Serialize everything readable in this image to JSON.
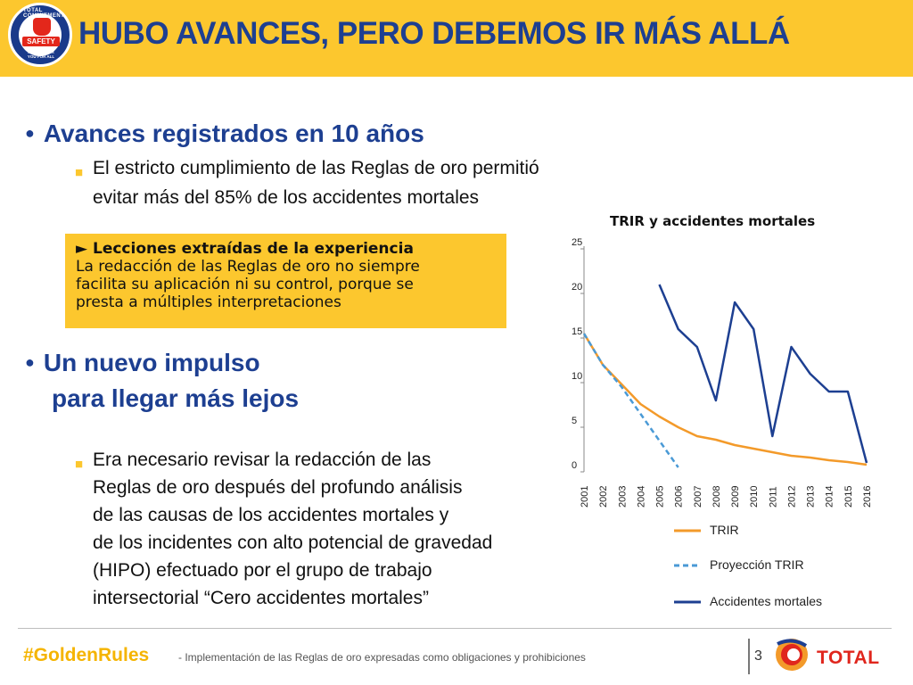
{
  "header": {
    "title": "HUBO AVANCES, PERO DEBEMOS IR MÁS ALLÁ",
    "logo": {
      "ring_text": "TOTAL COMMITMENT",
      "center_text": "SAFETY",
      "bottom_text": "FOR ME, FOR YOU FOR ALL"
    }
  },
  "section1": {
    "bullet": "Avances registrados en 10 años",
    "item_line1": "El estricto cumplimiento de las Reglas de oro permitió",
    "item_line2": "evitar más del 85% de los accidentes mortales"
  },
  "lessons": {
    "title": "► Lecciones extraídas de la experiencia",
    "line1": "La redacción de las Reglas de oro no siempre",
    "line2": "facilita su aplicación ni su control, porque se",
    "line3": "presta a múltiples interpretaciones"
  },
  "section2": {
    "bullet_line1": "Un nuevo impulso",
    "bullet_line2": "para llegar más lejos",
    "lines": [
      "Era necesario revisar la redacción de las",
      "Reglas de oro después del profundo análisis",
      "de las causas de los accidentes mortales y",
      "de los incidentes con alto potencial de gravedad",
      "(HIPO) efectuado por el grupo de trabajo",
      "intersectorial “Cero accidentes mortales”"
    ]
  },
  "footer": {
    "hashtag": "#GoldenRules",
    "subtitle": "- Implementación de las Reglas de oro expresadas como obligaciones y prohibiciones",
    "page_number": "3",
    "brand": "TOTAL"
  },
  "chart_data": {
    "type": "line",
    "title": "TRIR y accidentes mortales",
    "ylim": [
      0,
      25
    ],
    "yticks": [
      0,
      5,
      10,
      15,
      20,
      25
    ],
    "x": [
      "2001",
      "2002",
      "2003",
      "2004",
      "2005",
      "2006",
      "2007",
      "2008",
      "2009",
      "2010",
      "2011",
      "2012",
      "2013",
      "2014",
      "2015",
      "2016"
    ],
    "legend_position": "bottom",
    "series": [
      {
        "name": "TRIR",
        "color": "#f39a2a",
        "dashed": false,
        "values": [
          15.5,
          12,
          9.8,
          7.6,
          6.2,
          5.0,
          4.0,
          3.6,
          3.0,
          2.6,
          2.2,
          1.8,
          1.6,
          1.3,
          1.1,
          0.8
        ]
      },
      {
        "name": "Proyección TRIR",
        "color": "#4a9ad6",
        "dashed": true,
        "values": [
          15.5,
          12,
          9.5,
          6.5,
          3.5,
          0.5,
          null,
          null,
          null,
          null,
          null,
          null,
          null,
          null,
          null,
          null
        ]
      },
      {
        "name": "Accidentes mortales",
        "color": "#1d3f91",
        "dashed": false,
        "values": [
          null,
          null,
          null,
          null,
          21,
          16,
          14,
          8,
          19,
          16,
          4,
          14,
          11,
          9,
          9,
          1
        ]
      }
    ]
  }
}
